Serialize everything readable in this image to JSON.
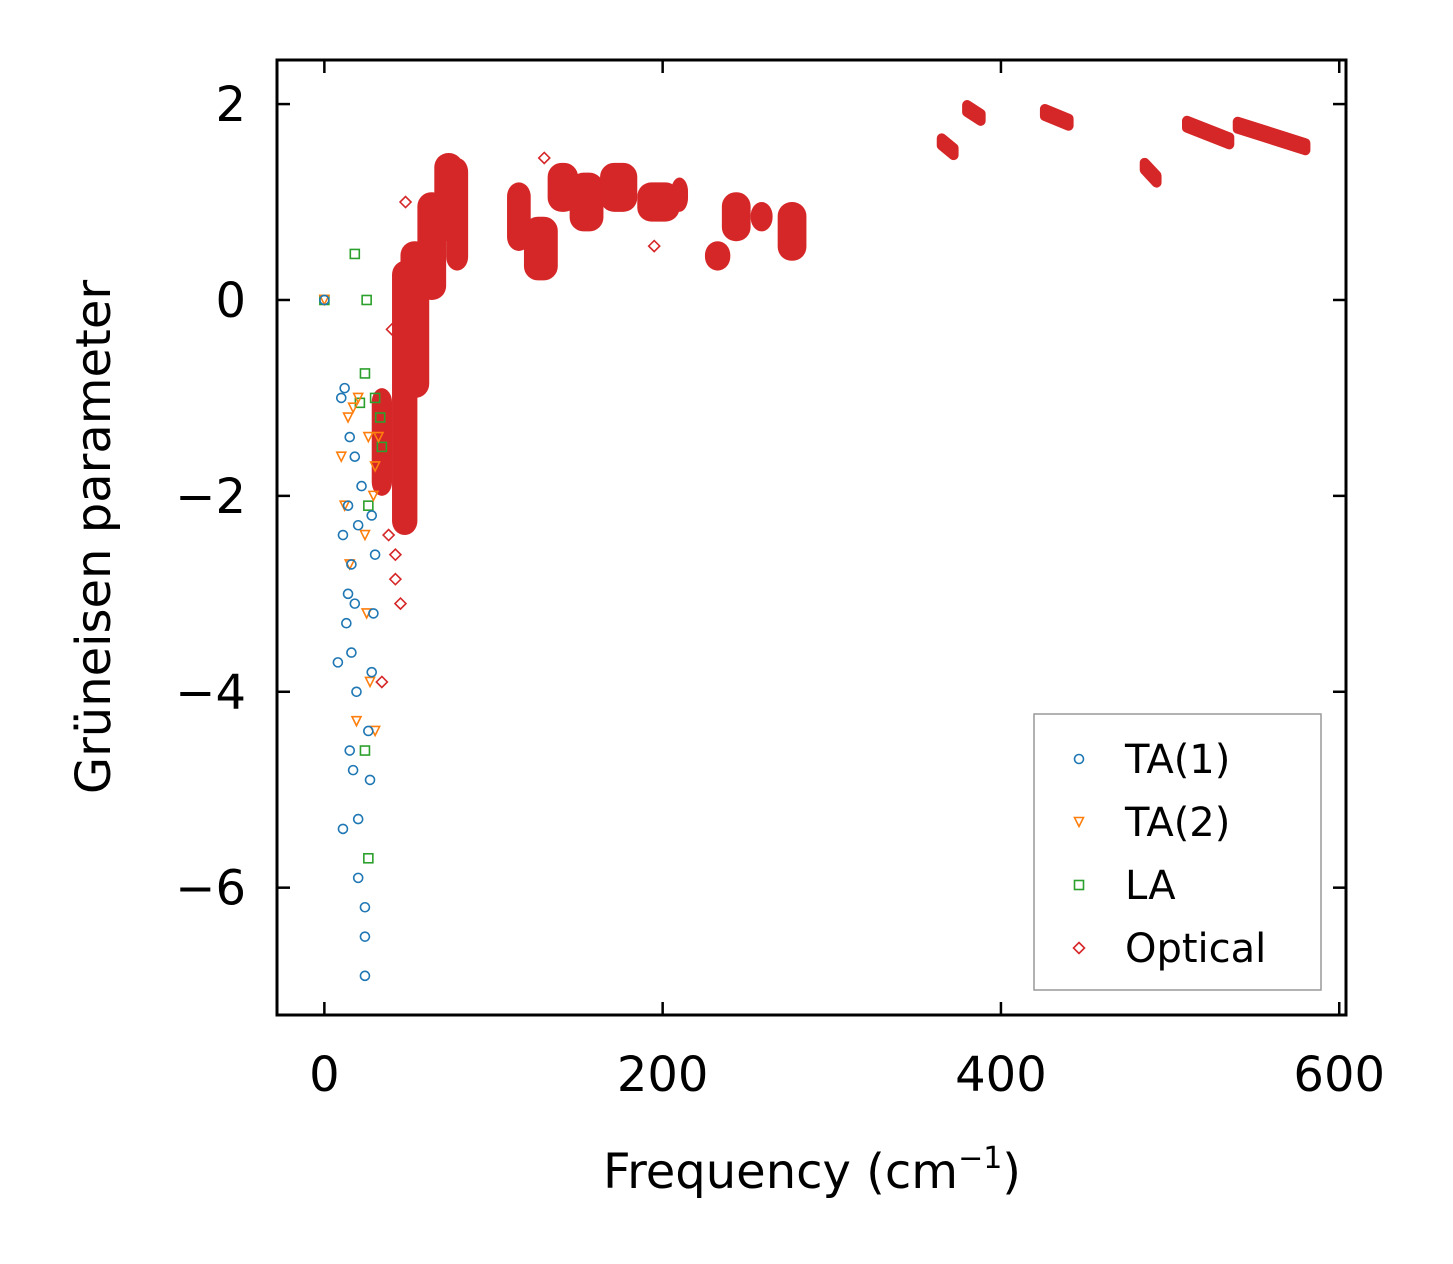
{
  "chart_data": {
    "type": "scatter",
    "title": "",
    "xlabel": "Frequency (cm",
    "xlabel_sup": "−1",
    "xlabel_tail": ")",
    "ylabel": "Grüneisen parameter",
    "xlim": [
      -28,
      604
    ],
    "ylim": [
      -7.3,
      2.45
    ],
    "xticks": [
      0,
      200,
      400,
      600
    ],
    "xtick_labels": [
      "0",
      "200",
      "400",
      "600"
    ],
    "yticks": [
      2,
      0,
      -2,
      -4,
      -6
    ],
    "ytick_labels": [
      "2",
      "0",
      "−2",
      "−4",
      "−6"
    ],
    "grid": false,
    "legend_position": "bottom-right",
    "series": [
      {
        "name": "TA(1)",
        "marker": "circle",
        "color": "#1f77b4",
        "points": [
          [
            0,
            0
          ],
          [
            12,
            -0.9
          ],
          [
            10,
            -1
          ],
          [
            15,
            -1.4
          ],
          [
            18,
            -1.6
          ],
          [
            14,
            -2.1
          ],
          [
            11,
            -2.4
          ],
          [
            16,
            -2.7
          ],
          [
            14,
            -3.0
          ],
          [
            18,
            -3.1
          ],
          [
            13,
            -3.3
          ],
          [
            8,
            -3.7
          ],
          [
            16,
            -3.6
          ],
          [
            19,
            -4.0
          ],
          [
            15,
            -4.6
          ],
          [
            17,
            -4.8
          ],
          [
            11,
            -5.4
          ],
          [
            20,
            -5.3
          ],
          [
            20,
            -5.9
          ],
          [
            24,
            -6.2
          ],
          [
            24,
            -6.5
          ],
          [
            24,
            -6.9
          ],
          [
            26,
            -4.4
          ],
          [
            27,
            -4.9
          ],
          [
            28,
            -3.8
          ],
          [
            29,
            -3.2
          ],
          [
            30,
            -2.6
          ],
          [
            28,
            -2.2
          ],
          [
            22,
            -1.9
          ],
          [
            20,
            -2.3
          ]
        ]
      },
      {
        "name": "TA(2)",
        "marker": "triangle",
        "color": "#ff7f0e",
        "points": [
          [
            0,
            0
          ],
          [
            14,
            -1.2
          ],
          [
            10,
            -1.6
          ],
          [
            17,
            -1.1
          ],
          [
            12,
            -2.1
          ],
          [
            15,
            -2.7
          ],
          [
            19,
            -4.3
          ],
          [
            20,
            -1.0
          ],
          [
            26,
            -1.4
          ],
          [
            30,
            -1.7
          ],
          [
            32,
            -1.4
          ],
          [
            29,
            -2.0
          ],
          [
            24,
            -2.4
          ],
          [
            27,
            -3.9
          ],
          [
            30,
            -4.4
          ],
          [
            25,
            -3.2
          ]
        ]
      },
      {
        "name": "LA",
        "marker": "square",
        "color": "#2ca02c",
        "points": [
          [
            0,
            0
          ],
          [
            18,
            0.47
          ],
          [
            25,
            0
          ],
          [
            24,
            -0.75
          ],
          [
            21,
            -1.05
          ],
          [
            26,
            -2.1
          ],
          [
            24,
            -4.6
          ],
          [
            26,
            -5.7
          ],
          [
            30,
            -1.0
          ],
          [
            33,
            -1.2
          ],
          [
            34,
            -1.5
          ]
        ]
      },
      {
        "name": "Optical",
        "marker": "diamond",
        "color": "#d62728",
        "points": [
          [
            48,
            1.0
          ],
          [
            40,
            -0.3
          ],
          [
            44,
            -1.5
          ],
          [
            42,
            -2.6
          ],
          [
            45,
            -3.1
          ],
          [
            42,
            -2.85
          ],
          [
            38,
            -2.4
          ],
          [
            34,
            -3.9
          ],
          [
            60,
            0.55
          ],
          [
            130,
            1.45
          ],
          [
            195,
            0.55
          ]
        ],
        "clusters": [
          {
            "x": [
              28,
              40
            ],
            "y": [
              -2.0,
              -0.9
            ]
          },
          {
            "x": [
              40,
              55
            ],
            "y": [
              -2.4,
              0.4
            ]
          },
          {
            "x": [
              45,
              62
            ],
            "y": [
              -1.0,
              0.6
            ]
          },
          {
            "x": [
              55,
              72
            ],
            "y": [
              0.0,
              1.1
            ]
          },
          {
            "x": [
              65,
              82
            ],
            "y": [
              0.6,
              1.5
            ]
          },
          {
            "x": [
              72,
              85
            ],
            "y": [
              0.3,
              1.45
            ]
          },
          {
            "x": [
              108,
              122
            ],
            "y": [
              0.5,
              1.2
            ]
          },
          {
            "x": [
              118,
              138
            ],
            "y": [
              0.2,
              0.85
            ]
          },
          {
            "x": [
              132,
              150
            ],
            "y": [
              0.9,
              1.4
            ]
          },
          {
            "x": [
              145,
              165
            ],
            "y": [
              0.7,
              1.3
            ]
          },
          {
            "x": [
              163,
              185
            ],
            "y": [
              0.9,
              1.4
            ]
          },
          {
            "x": [
              185,
              210
            ],
            "y": [
              0.8,
              1.2
            ]
          },
          {
            "x": [
              205,
              215
            ],
            "y": [
              0.9,
              1.25
            ]
          },
          {
            "x": [
              225,
              240
            ],
            "y": [
              0.3,
              0.6
            ]
          },
          {
            "x": [
              235,
              252
            ],
            "y": [
              0.6,
              1.1
            ]
          },
          {
            "x": [
              252,
              265
            ],
            "y": [
              0.7,
              1.0
            ]
          },
          {
            "x": [
              268,
              285
            ],
            "y": [
              0.4,
              1.0
            ]
          }
        ],
        "bands": [
          {
            "x": [
              365,
              372
            ],
            "y": [
              1.55,
              1.65
            ]
          },
          {
            "x": [
              380,
              388
            ],
            "y": [
              1.9,
              1.99
            ]
          },
          {
            "x": [
              426,
              440
            ],
            "y": [
              1.85,
              1.95
            ]
          },
          {
            "x": [
              485,
              492
            ],
            "y": [
              1.27,
              1.4
            ]
          },
          {
            "x": [
              510,
              535
            ],
            "y": [
              1.66,
              1.83
            ]
          },
          {
            "x": [
              540,
              580
            ],
            "y": [
              1.6,
              1.82
            ]
          }
        ]
      }
    ]
  }
}
